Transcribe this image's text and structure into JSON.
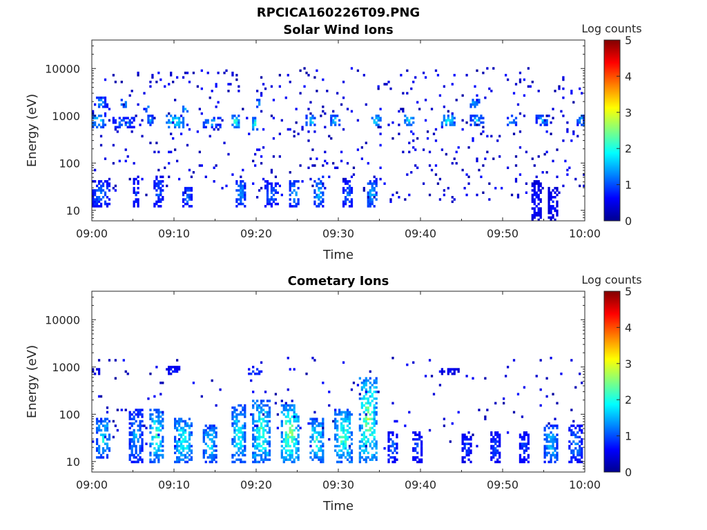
{
  "figure": {
    "title": "RPCICA160226T09.PNG"
  },
  "colorbar": {
    "label": "Log counts",
    "range": [
      0,
      5
    ],
    "ticks": [
      "0",
      "1",
      "2",
      "3",
      "4",
      "5"
    ],
    "colormap": "jet",
    "colors": [
      "#00008f",
      "#0000ff",
      "#0080ff",
      "#00ffff",
      "#80ff80",
      "#ffff00",
      "#ff8000",
      "#ff0000",
      "#800000"
    ]
  },
  "chart_data": [
    {
      "type": "heatmap",
      "title": "Solar Wind Ions",
      "xlabel": "Time",
      "ylabel": "Energy (eV)",
      "xlim": [
        "09:00",
        "10:00"
      ],
      "ylim": [
        6,
        40000
      ],
      "yscale": "log",
      "xticks": [
        "09:00",
        "09:10",
        "09:20",
        "09:30",
        "09:40",
        "09:50",
        "10:00"
      ],
      "yticks": [
        "10",
        "100",
        "1000",
        "10000"
      ],
      "value_label": "Log counts",
      "value_range": [
        0,
        5
      ],
      "clusters": [
        {
          "t_start_min": 0.0,
          "t_end_min": 1.5,
          "e_low": 600,
          "e_high": 1000,
          "peak": 2.2
        },
        {
          "t_start_min": 0.5,
          "t_end_min": 1.5,
          "e_low": 1500,
          "e_high": 2500,
          "peak": 1.8
        },
        {
          "t_start_min": 3.5,
          "t_end_min": 4.0,
          "e_low": 1600,
          "e_high": 2200,
          "peak": 2.0
        },
        {
          "t_start_min": 2.5,
          "t_end_min": 5.0,
          "e_low": 600,
          "e_high": 900,
          "peak": 1.6
        },
        {
          "t_start_min": 6.5,
          "t_end_min": 7.2,
          "e_low": 1200,
          "e_high": 1500,
          "peak": 2.0
        },
        {
          "t_start_min": 6.8,
          "t_end_min": 7.4,
          "e_low": 650,
          "e_high": 950,
          "peak": 1.8
        },
        {
          "t_start_min": 9.0,
          "t_end_min": 11.0,
          "e_low": 600,
          "e_high": 1000,
          "peak": 2.4
        },
        {
          "t_start_min": 11.0,
          "t_end_min": 11.5,
          "e_low": 1300,
          "e_high": 1600,
          "peak": 2.1
        },
        {
          "t_start_min": 13.5,
          "t_end_min": 15.5,
          "e_low": 600,
          "e_high": 900,
          "peak": 1.9
        },
        {
          "t_start_min": 17.0,
          "t_end_min": 17.8,
          "e_low": 550,
          "e_high": 950,
          "peak": 2.5
        },
        {
          "t_start_min": 20.0,
          "t_end_min": 20.5,
          "e_low": 1600,
          "e_high": 2200,
          "peak": 2.0
        },
        {
          "t_start_min": 19.5,
          "t_end_min": 20.2,
          "e_low": 500,
          "e_high": 900,
          "peak": 2.5
        },
        {
          "t_start_min": 26.0,
          "t_end_min": 27.0,
          "e_low": 650,
          "e_high": 950,
          "peak": 2.2
        },
        {
          "t_start_min": 29.0,
          "t_end_min": 30.0,
          "e_low": 650,
          "e_high": 950,
          "peak": 2.1
        },
        {
          "t_start_min": 34.0,
          "t_end_min": 35.0,
          "e_low": 650,
          "e_high": 950,
          "peak": 2.2
        },
        {
          "t_start_min": 38.0,
          "t_end_min": 39.0,
          "e_low": 650,
          "e_high": 950,
          "peak": 2.2
        },
        {
          "t_start_min": 42.5,
          "t_end_min": 44.0,
          "e_low": 650,
          "e_high": 950,
          "peak": 2.4
        },
        {
          "t_start_min": 46.0,
          "t_end_min": 47.5,
          "e_low": 650,
          "e_high": 950,
          "peak": 2.0
        },
        {
          "t_start_min": 46.0,
          "t_end_min": 47.0,
          "e_low": 1500,
          "e_high": 2200,
          "peak": 2.0
        },
        {
          "t_start_min": 50.5,
          "t_end_min": 51.5,
          "e_low": 650,
          "e_high": 950,
          "peak": 1.8
        },
        {
          "t_start_min": 54.0,
          "t_end_min": 55.5,
          "e_low": 650,
          "e_high": 950,
          "peak": 1.8
        },
        {
          "t_start_min": 59.0,
          "t_end_min": 59.8,
          "e_low": 650,
          "e_high": 950,
          "peak": 2.0
        },
        {
          "t_start_min": 0.0,
          "t_end_min": 2.0,
          "e_low": 12,
          "e_high": 40,
          "peak": 1.5
        },
        {
          "t_start_min": 5.0,
          "t_end_min": 5.5,
          "e_low": 12,
          "e_high": 50,
          "peak": 1.2
        },
        {
          "t_start_min": 7.5,
          "t_end_min": 8.5,
          "e_low": 12,
          "e_high": 50,
          "peak": 1.4
        },
        {
          "t_start_min": 11.0,
          "t_end_min": 12.0,
          "e_low": 12,
          "e_high": 30,
          "peak": 1.6
        },
        {
          "t_start_min": 17.5,
          "t_end_min": 18.5,
          "e_low": 12,
          "e_high": 40,
          "peak": 1.8
        },
        {
          "t_start_min": 21.0,
          "t_end_min": 22.5,
          "e_low": 12,
          "e_high": 40,
          "peak": 1.5
        },
        {
          "t_start_min": 24.0,
          "t_end_min": 25.0,
          "e_low": 12,
          "e_high": 40,
          "peak": 1.8
        },
        {
          "t_start_min": 27.0,
          "t_end_min": 28.0,
          "e_low": 12,
          "e_high": 50,
          "peak": 1.9
        },
        {
          "t_start_min": 30.5,
          "t_end_min": 31.5,
          "e_low": 12,
          "e_high": 40,
          "peak": 1.5
        },
        {
          "t_start_min": 33.5,
          "t_end_min": 34.5,
          "e_low": 12,
          "e_high": 40,
          "peak": 2.0
        },
        {
          "t_start_min": 53.5,
          "t_end_min": 54.5,
          "e_low": 6,
          "e_high": 40,
          "peak": 1.0
        },
        {
          "t_start_min": 55.5,
          "t_end_min": 56.5,
          "e_low": 6,
          "e_high": 30,
          "peak": 0.9
        }
      ]
    },
    {
      "type": "heatmap",
      "title": "Cometary Ions",
      "xlabel": "Time",
      "ylabel": "Energy (eV)",
      "xlim": [
        "09:00",
        "10:00"
      ],
      "ylim": [
        6,
        40000
      ],
      "yscale": "log",
      "xticks": [
        "09:00",
        "09:10",
        "09:20",
        "09:30",
        "09:40",
        "09:50",
        "10:00"
      ],
      "yticks": [
        "10",
        "100",
        "1000",
        "10000"
      ],
      "value_label": "Log counts",
      "value_range": [
        0,
        5
      ],
      "clusters": [
        {
          "t_start_min": 0.5,
          "t_end_min": 2.0,
          "e_low": 12,
          "e_high": 80,
          "peak": 2.3
        },
        {
          "t_start_min": 4.5,
          "t_end_min": 6.0,
          "e_low": 10,
          "e_high": 120,
          "peak": 1.8
        },
        {
          "t_start_min": 7.0,
          "t_end_min": 8.5,
          "e_low": 10,
          "e_high": 120,
          "peak": 2.6
        },
        {
          "t_start_min": 10.0,
          "t_end_min": 12.0,
          "e_low": 10,
          "e_high": 80,
          "peak": 2.5
        },
        {
          "t_start_min": 13.5,
          "t_end_min": 15.0,
          "e_low": 10,
          "e_high": 60,
          "peak": 2.2
        },
        {
          "t_start_min": 17.0,
          "t_end_min": 18.5,
          "e_low": 10,
          "e_high": 150,
          "peak": 2.4
        },
        {
          "t_start_min": 19.5,
          "t_end_min": 21.5,
          "e_low": 10,
          "e_high": 200,
          "peak": 2.7
        },
        {
          "t_start_min": 23.0,
          "t_end_min": 25.0,
          "e_low": 10,
          "e_high": 150,
          "peak": 3.0
        },
        {
          "t_start_min": 26.5,
          "t_end_min": 28.0,
          "e_low": 10,
          "e_high": 80,
          "peak": 2.5
        },
        {
          "t_start_min": 29.5,
          "t_end_min": 31.5,
          "e_low": 10,
          "e_high": 120,
          "peak": 2.7
        },
        {
          "t_start_min": 32.5,
          "t_end_min": 34.5,
          "e_low": 10,
          "e_high": 600,
          "peak": 3.0
        },
        {
          "t_start_min": 36.0,
          "t_end_min": 37.0,
          "e_low": 10,
          "e_high": 40,
          "peak": 1.4
        },
        {
          "t_start_min": 39.0,
          "t_end_min": 40.0,
          "e_low": 10,
          "e_high": 40,
          "peak": 1.3
        },
        {
          "t_start_min": 45.0,
          "t_end_min": 46.0,
          "e_low": 10,
          "e_high": 40,
          "peak": 1.2
        },
        {
          "t_start_min": 48.5,
          "t_end_min": 49.5,
          "e_low": 10,
          "e_high": 40,
          "peak": 1.3
        },
        {
          "t_start_min": 52.0,
          "t_end_min": 53.0,
          "e_low": 10,
          "e_high": 40,
          "peak": 1.3
        },
        {
          "t_start_min": 55.0,
          "t_end_min": 56.5,
          "e_low": 10,
          "e_high": 60,
          "peak": 2.0
        },
        {
          "t_start_min": 58.0,
          "t_end_min": 59.5,
          "e_low": 10,
          "e_high": 60,
          "peak": 1.6
        },
        {
          "t_start_min": 0.0,
          "t_end_min": 1.0,
          "e_low": 700,
          "e_high": 900,
          "peak": 0.8
        },
        {
          "t_start_min": 9.0,
          "t_end_min": 10.5,
          "e_low": 700,
          "e_high": 1000,
          "peak": 1.0
        },
        {
          "t_start_min": 19.0,
          "t_end_min": 20.5,
          "e_low": 700,
          "e_high": 900,
          "peak": 1.4
        },
        {
          "t_start_min": 42.5,
          "t_end_min": 44.5,
          "e_low": 750,
          "e_high": 900,
          "peak": 0.9
        }
      ]
    }
  ]
}
